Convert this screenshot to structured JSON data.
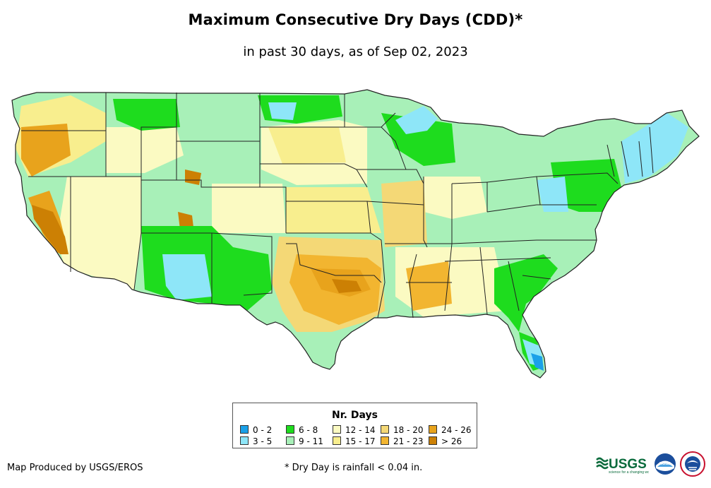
{
  "title": "Maximum Consecutive Dry Days (CDD)*",
  "subtitle": "in past 30 days, as of Sep 02, 2023",
  "legend": {
    "title": "Nr. Days",
    "items": [
      {
        "label": "0 - 2",
        "color": "#1aa0e8"
      },
      {
        "label": "3 - 5",
        "color": "#8ee6f8"
      },
      {
        "label": "6 - 8",
        "color": "#1edc1e"
      },
      {
        "label": "9 - 11",
        "color": "#a8f0b8"
      },
      {
        "label": "12 - 14",
        "color": "#fbfac2"
      },
      {
        "label": "15 - 17",
        "color": "#f8ee8e"
      },
      {
        "label": "18 - 20",
        "color": "#f4d876"
      },
      {
        "label": "21 - 23",
        "color": "#f2b530"
      },
      {
        "label": "24 - 26",
        "color": "#e8a31c"
      },
      {
        "label": "> 26",
        "color": "#cc8004"
      }
    ]
  },
  "footer": {
    "credit": "Map Produced by USGS/EROS",
    "note": "* Dry Day is rainfall < 0.04 in."
  },
  "logos": {
    "usgs_text": "USGS",
    "noaa_text": "noaa"
  }
}
